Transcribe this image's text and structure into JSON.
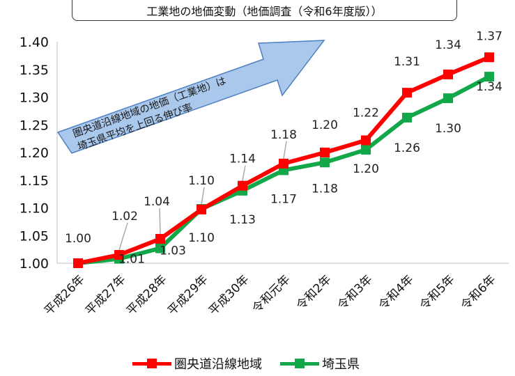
{
  "colors": {
    "metro": "#ff0000",
    "saitama": "#12a84a",
    "callout_fill": "#a9c8ec",
    "callout_stroke": "#4f7fc0"
  },
  "callout_text": [
    "圏央道沿線地域の地価（工業地）は",
    "埼玉県平均を上回る伸び率"
  ],
  "chart_data": {
    "type": "line",
    "title": "工業地の地価変動（地価調査（令和6年度版））",
    "categories": [
      "平成26年",
      "平成27年",
      "平成28年",
      "平成29年",
      "平成30年",
      "令和元年",
      "令和2年",
      "令和3年",
      "令和4年",
      "令和5年",
      "令和6年"
    ],
    "ylim": [
      1.0,
      1.4
    ],
    "yticks": [
      "1.00",
      "1.05",
      "1.10",
      "1.15",
      "1.20",
      "1.25",
      "1.30",
      "1.35",
      "1.40"
    ],
    "grid": false,
    "legend_position": "bottom",
    "series": [
      {
        "name": "圏央道沿線地域",
        "values": [
          1.0,
          1.015,
          1.044,
          1.097,
          1.14,
          1.18,
          1.2,
          1.222,
          1.308,
          1.341,
          1.372
        ],
        "labels": [
          "1.00",
          "1.02",
          "1.04",
          "1.10",
          "1.14",
          "1.18",
          "1.20",
          "1.22",
          "1.31",
          "1.34",
          "1.37"
        ]
      },
      {
        "name": "埼玉県",
        "values": [
          1.0,
          1.008,
          1.027,
          1.098,
          1.131,
          1.168,
          1.182,
          1.205,
          1.263,
          1.298,
          1.337
        ],
        "labels": [
          "",
          "1.01",
          "1.03",
          "1.10",
          "1.13",
          "1.17",
          "1.18",
          "1.20",
          "1.26",
          "1.30",
          "1.34"
        ]
      }
    ]
  }
}
